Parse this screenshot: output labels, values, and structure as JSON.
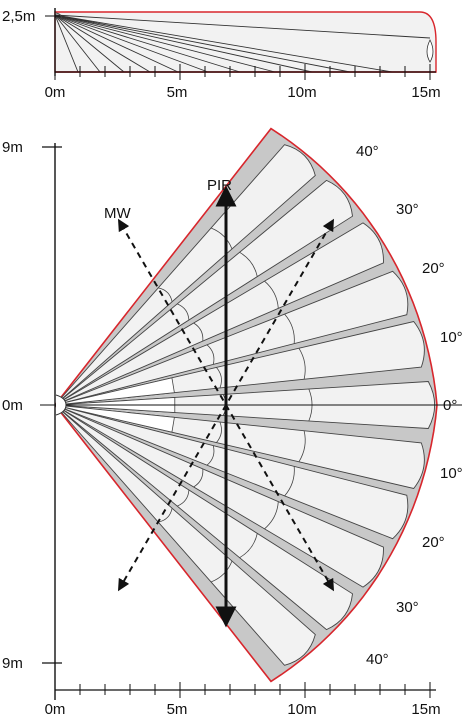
{
  "side_view": {
    "height_label": "2,5m",
    "axis_labels": [
      "0m",
      "5m",
      "10m",
      "15m"
    ]
  },
  "top_view": {
    "y_top_label": "9m",
    "y_mid_label": "0m",
    "y_bottom_label": "9m",
    "axis_labels": [
      "0m",
      "5m",
      "10m",
      "15m"
    ],
    "pir_label": "PIR",
    "mw_label": "MW",
    "angle_labels_upper": [
      "40°",
      "30°",
      "20°",
      "10°"
    ],
    "angle_label_center": "0°",
    "angle_labels_lower": [
      "10°",
      "20°",
      "30°",
      "40°"
    ]
  },
  "colors": {
    "outline": "#d8262c",
    "coverage_fill": "#c8c8c8",
    "zone_fill": "#f2f2f2",
    "inner_fill": "#ffffff",
    "ink": "#111111"
  }
}
